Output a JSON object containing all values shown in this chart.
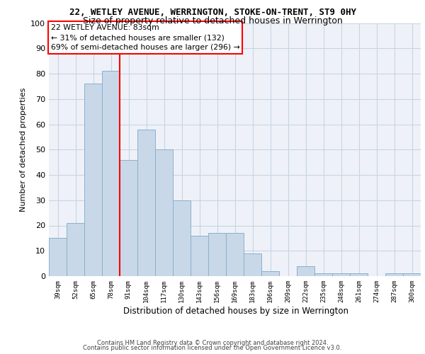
{
  "title1": "22, WETLEY AVENUE, WERRINGTON, STOKE-ON-TRENT, ST9 0HY",
  "title2": "Size of property relative to detached houses in Werrington",
  "xlabel": "Distribution of detached houses by size in Werrington",
  "ylabel": "Number of detached properties",
  "categories": [
    "39sqm",
    "52sqm",
    "65sqm",
    "78sqm",
    "91sqm",
    "104sqm",
    "117sqm",
    "130sqm",
    "143sqm",
    "156sqm",
    "169sqm",
    "183sqm",
    "196sqm",
    "209sqm",
    "222sqm",
    "235sqm",
    "248sqm",
    "261sqm",
    "274sqm",
    "287sqm",
    "300sqm"
  ],
  "values": [
    15,
    21,
    76,
    81,
    46,
    58,
    50,
    30,
    16,
    17,
    17,
    9,
    2,
    0,
    4,
    1,
    1,
    1,
    0,
    1,
    1
  ],
  "bar_color": "#c8d8e8",
  "bar_edge_color": "#8ab0cc",
  "grid_color": "#c8d4e4",
  "background_color": "#eef2f8",
  "annotation_line_color": "red",
  "annotation_text": "22 WETLEY AVENUE: 83sqm\n← 31% of detached houses are smaller (132)\n69% of semi-detached houses are larger (296) →",
  "annotation_box_color": "white",
  "annotation_box_edge": "red",
  "ylim": [
    0,
    100
  ],
  "yticks": [
    0,
    10,
    20,
    30,
    40,
    50,
    60,
    70,
    80,
    90,
    100
  ],
  "footer1": "Contains HM Land Registry data © Crown copyright and database right 2024.",
  "footer2": "Contains public sector information licensed under the Open Government Licence v3.0.",
  "title1_fontsize": 9,
  "title2_fontsize": 9,
  "footer_fontsize": 6,
  "ylabel_fontsize": 8,
  "xlabel_fontsize": 8.5,
  "ytick_fontsize": 8,
  "xtick_fontsize": 6.5
}
